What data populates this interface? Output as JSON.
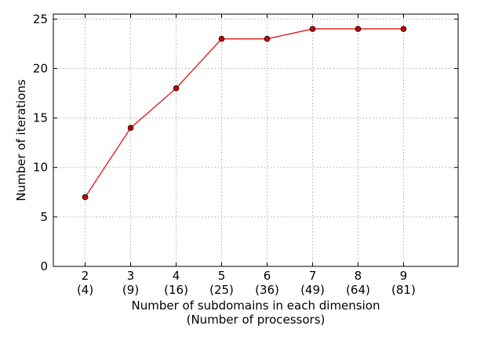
{
  "chart_data": {
    "type": "line",
    "xlabel": "Number of subdomains in each dimension",
    "xlabel2": "(Number of processors)",
    "ylabel": "Number of iterations",
    "xlim": [
      1.3,
      10.2
    ],
    "ylim": [
      0,
      25.5
    ],
    "yticks": [
      0,
      5,
      10,
      15,
      20,
      25
    ],
    "xticks": [
      {
        "value": 2,
        "label": "2",
        "sub": "(4)"
      },
      {
        "value": 3,
        "label": "3",
        "sub": "(9)"
      },
      {
        "value": 4,
        "label": "4",
        "sub": "(16)"
      },
      {
        "value": 5,
        "label": "5",
        "sub": "(25)"
      },
      {
        "value": 6,
        "label": "6",
        "sub": "(36)"
      },
      {
        "value": 7,
        "label": "7",
        "sub": "(49)"
      },
      {
        "value": 8,
        "label": "8",
        "sub": "(64)"
      },
      {
        "value": 9,
        "label": "9",
        "sub": "(81)"
      }
    ],
    "grid": true,
    "series": [
      {
        "color": "#e00000",
        "marker_color": "#cc0000",
        "x": [
          2,
          3,
          4,
          5,
          6,
          7,
          8,
          9
        ],
        "y": [
          7,
          14,
          18,
          23,
          23,
          24,
          24,
          24
        ]
      }
    ]
  }
}
